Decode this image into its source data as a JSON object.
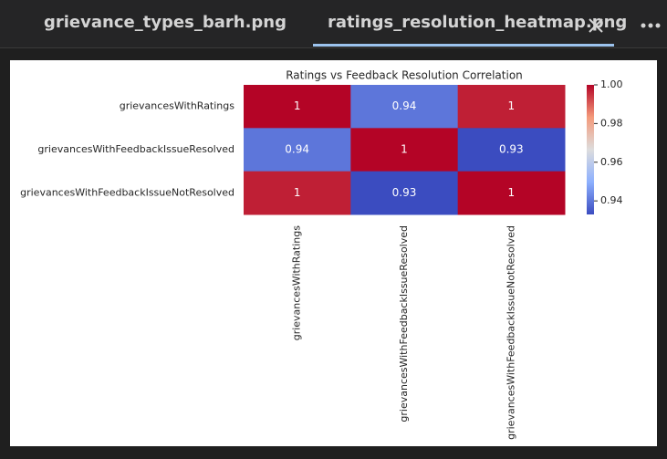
{
  "tabs": [
    {
      "label": "grievance_types_barh.png"
    },
    {
      "label": "ratings_resolution_heatmap.png"
    }
  ],
  "chart_data": {
    "type": "heatmap",
    "title": "Ratings vs Feedback Resolution Correlation",
    "rows": [
      "grievancesWithRatings",
      "grievancesWithFeedbackIssueResolved",
      "grievancesWithFeedbackIssueNotResolved"
    ],
    "columns": [
      "grievancesWithRatings",
      "grievancesWithFeedbackIssueResolved",
      "grievancesWithFeedbackIssueNotResolved"
    ],
    "values": [
      [
        1,
        0.94,
        0.997
      ],
      [
        0.94,
        1,
        0.93
      ],
      [
        0.997,
        0.93,
        1
      ]
    ],
    "value_labels": [
      [
        "1",
        "0.94",
        "1"
      ],
      [
        "0.94",
        "1",
        "0.93"
      ],
      [
        "1",
        "0.93",
        "1"
      ]
    ],
    "zlim": [
      0.933,
      1
    ],
    "zticks": [
      0.94,
      0.96,
      0.98,
      {
        "value": 1,
        "label": "1.00"
      }
    ],
    "colorscale": [
      "#3b4cc0",
      "#8db0fe",
      "#dddddd",
      "#f49a7b",
      "#b40426"
    ]
  }
}
